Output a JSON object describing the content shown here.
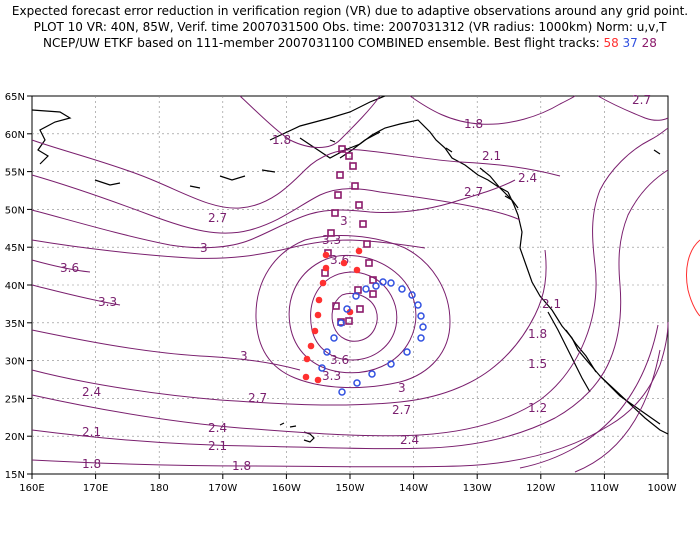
{
  "title": {
    "line1": "Expected forecast error reduction in verification region (VR) due to adaptive observations around any grid point.",
    "line2": "PLOT 10 VR: 40N, 85W, Verif. time 2007031500 Obs. time: 2007031312 (VR radius: 1000km) Norm: u,v,T",
    "line3_prefix": "NCEP/UW ETKF based on 111-member 2007031100 COMBINED ensemble.  Best flight tracks: ",
    "track_red": "58",
    "track_blue": "37",
    "track_purple": "28"
  },
  "map": {
    "lat_labels": [
      "65N",
      "60N",
      "55N",
      "50N",
      "45N",
      "40N",
      "35N",
      "30N",
      "25N",
      "20N",
      "15N"
    ],
    "lon_labels": [
      "160E",
      "170E",
      "180",
      "170W",
      "160W",
      "150W",
      "140W",
      "130W",
      "120W",
      "110W",
      "100W"
    ],
    "contour_labels": [
      "2.7",
      "1.8",
      "1.8",
      "2.1",
      "2.4",
      "2.7",
      "2.7",
      "3",
      "3",
      "3.6",
      "3.3",
      "3.3",
      "3.3",
      "3.6",
      "3.6",
      "3",
      "3",
      "2.7",
      "2.7",
      "2.4",
      "2.4",
      "2.4",
      "2.1",
      "2.1",
      "2.1",
      "1.8",
      "1.8",
      "1.8",
      "1.5",
      "1.2"
    ],
    "colors": {
      "contour": "#7a1f6e",
      "coast": "#000000",
      "track_58": "#ff3030",
      "track_37": "#3050e0",
      "track_28": "#8b1a6b",
      "grid": "#888888"
    }
  }
}
